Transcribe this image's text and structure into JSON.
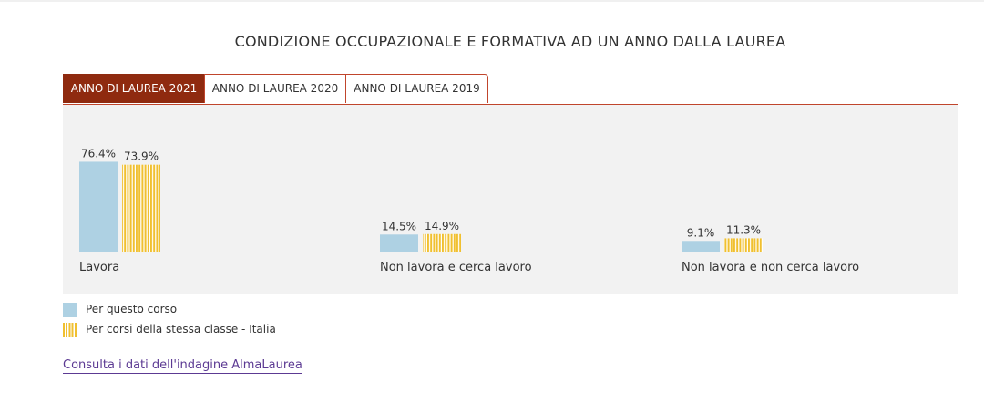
{
  "title": "CONDIZIONE OCCUPAZIONALE E FORMATIVA AD UN ANNO DALLA LAUREA",
  "tabs": [
    {
      "label": "ANNO DI LAUREA 2021",
      "active": true
    },
    {
      "label": "ANNO DI LAUREA 2020",
      "active": false
    },
    {
      "label": "ANNO DI LAUREA 2019",
      "active": false
    }
  ],
  "legend": [
    {
      "label": "Per questo corso",
      "color": "#aed1e3"
    },
    {
      "label": "Per corsi della stessa classe - Italia",
      "color": "#f0c030"
    }
  ],
  "link": "Consulta i dati dell'indagine AlmaLaurea",
  "colors": {
    "accent": "#8f2a0f",
    "tab_border": "#c0452c",
    "corso": "#aed1e3",
    "classe": "#f0c030",
    "panel": "#f2f2f2",
    "link": "#5c3a93"
  },
  "chart_data": {
    "type": "bar",
    "title": "CONDIZIONE OCCUPAZIONALE E FORMATIVA AD UN ANNO DALLA LAUREA",
    "categories": [
      "Lavora",
      "Non lavora e cerca lavoro",
      "Non lavora e non cerca lavoro"
    ],
    "series": [
      {
        "name": "Per questo corso",
        "values": [
          76.4,
          14.5,
          9.1
        ],
        "labels": [
          "76.4%",
          "14.5%",
          "9.1%"
        ],
        "color": "#aed1e3"
      },
      {
        "name": "Per corsi della stessa classe - Italia",
        "values": [
          73.9,
          14.9,
          11.3
        ],
        "labels": [
          "73.9%",
          "14.9%",
          "11.3%"
        ],
        "color": "#f0c030"
      }
    ],
    "xlabel": "",
    "ylabel": "",
    "unit": "%",
    "grid": false,
    "legend_position": "bottom-left"
  }
}
